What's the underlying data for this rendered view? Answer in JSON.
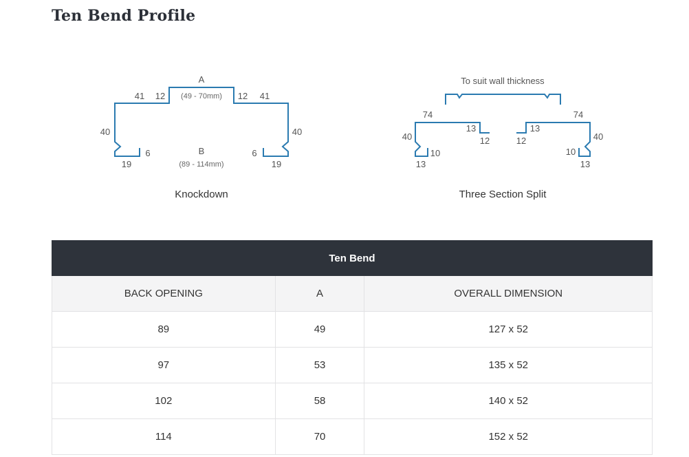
{
  "page": {
    "title": "Ten Bend Profile"
  },
  "knockdown": {
    "caption": "Knockdown",
    "label_a": "A",
    "range_a": "(49 - 70mm)",
    "label_b": "B",
    "range_b": "(89 - 114mm)",
    "dims": {
      "top_left_outer": "41",
      "top_left_inner": "12",
      "top_right_inner": "12",
      "top_right_outer": "41",
      "left_side": "40",
      "right_side": "40",
      "left_return": "6",
      "right_return": "6",
      "left_foot": "19",
      "right_foot": "19"
    }
  },
  "split": {
    "caption": "Three Section Split",
    "top_note": "To suit wall thickness",
    "dims": {
      "left_top": "74",
      "right_top": "74",
      "left_inner": "13",
      "right_inner": "13",
      "left_lip": "12",
      "right_lip": "12",
      "left_side": "40",
      "right_side": "40",
      "left_return": "10",
      "right_return": "10",
      "left_foot": "13",
      "right_foot": "13"
    }
  },
  "table": {
    "title": "Ten Bend",
    "headers": [
      "BACK OPENING",
      "A",
      "OVERALL DIMENSION"
    ],
    "rows": [
      [
        "89",
        "49",
        "127 x 52"
      ],
      [
        "97",
        "53",
        "135 x 52"
      ],
      [
        "102",
        "58",
        "140 x 52"
      ],
      [
        "114",
        "70",
        "152 x 52"
      ]
    ]
  }
}
